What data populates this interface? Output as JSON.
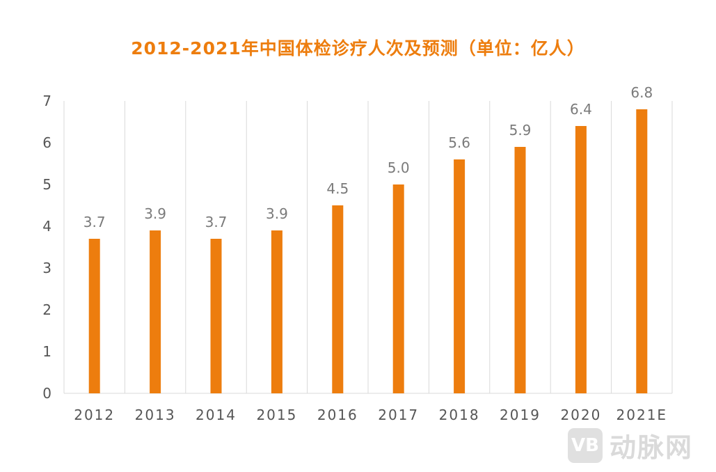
{
  "chart_data": {
    "type": "bar",
    "title": "2012-2021年中国体检诊疗人次及预测（单位：亿人）",
    "categories": [
      "2012",
      "2013",
      "2014",
      "2015",
      "2016",
      "2017",
      "2018",
      "2019",
      "2020",
      "2021E"
    ],
    "values": [
      3.7,
      3.9,
      3.7,
      3.9,
      4.5,
      5.0,
      5.6,
      5.9,
      6.4,
      6.8
    ],
    "data_labels": [
      "3.7",
      "3.9",
      "3.7",
      "3.9",
      "4.5",
      "5.0",
      "5.6",
      "5.9",
      "6.4",
      "6.8"
    ],
    "ylim": [
      0,
      7
    ],
    "yticks": [
      "0",
      "1",
      "2",
      "3",
      "4",
      "5",
      "6",
      "7"
    ],
    "xlabel": "",
    "ylabel": "",
    "grid": "vertical category dividers",
    "legend": "none",
    "bar_color": "#ED7D0E",
    "grid_color": "#D9D9D9"
  },
  "watermark": {
    "logo_text": "VB",
    "text": "动脉网"
  }
}
